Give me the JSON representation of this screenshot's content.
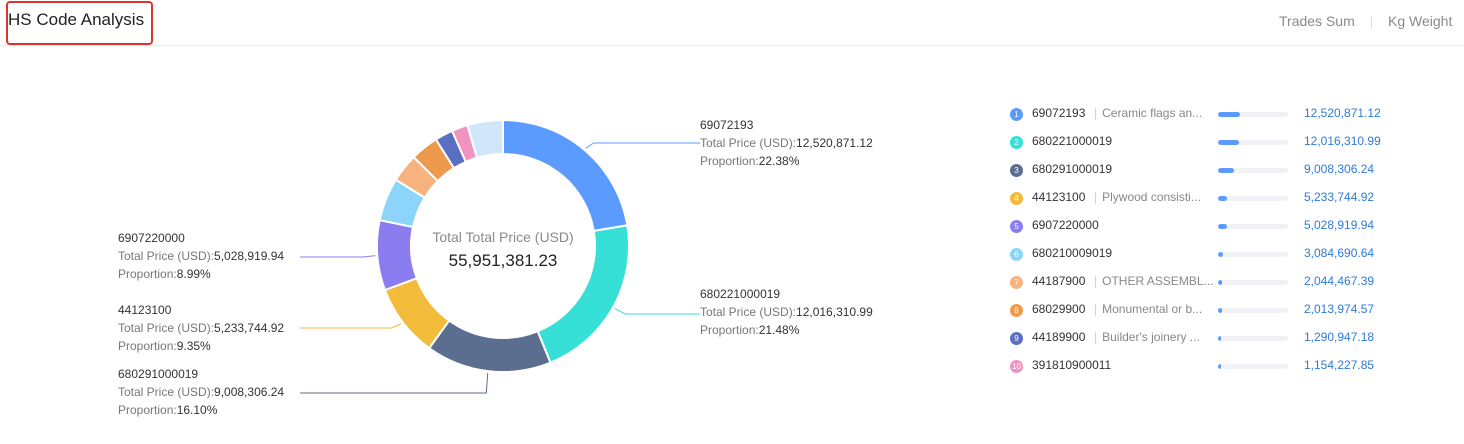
{
  "header": {
    "title": "HS Code Analysis",
    "toggles": [
      "Trades Sum",
      "Kg Weight"
    ]
  },
  "center": {
    "label": "Total Total Price (USD)",
    "value": "55,951,381.23"
  },
  "labels": {
    "price_prefix": "Total Price (USD):",
    "proportion_prefix": "Proportion:"
  },
  "chart_data": {
    "type": "pie",
    "donut": true,
    "total": 55951381.23,
    "slices": [
      {
        "code": "69072193",
        "desc": "Ceramic flags an...",
        "value": 12520871.12,
        "value_text": "12,520,871.12",
        "proportion": "22.38%",
        "color": "#5b9bff"
      },
      {
        "code": "680221000019",
        "desc": "",
        "value": 12016310.99,
        "value_text": "12,016,310.99",
        "proportion": "21.48%",
        "color": "#36e0d6"
      },
      {
        "code": "680291000019",
        "desc": "",
        "value": 9008306.24,
        "value_text": "9,008,306.24",
        "proportion": "16.10%",
        "color": "#5b6e90"
      },
      {
        "code": "44123100",
        "desc": "Plywood consisti...",
        "value": 5233744.92,
        "value_text": "5,233,744.92",
        "proportion": "9.35%",
        "color": "#f2bc3a"
      },
      {
        "code": "6907220000",
        "desc": "",
        "value": 5028919.94,
        "value_text": "5,028,919.94",
        "proportion": "8.99%",
        "color": "#8b7df0"
      },
      {
        "code": "680210009019",
        "desc": "",
        "value": 3084690.64,
        "value_text": "3,084,690.64",
        "color": "#8dd4fb"
      },
      {
        "code": "44187900",
        "desc": "OTHER ASSEMBL...",
        "value": 2044467.39,
        "value_text": "2,044,467.39",
        "color": "#f6b37f"
      },
      {
        "code": "68029900",
        "desc": "Monumental or b...",
        "value": 2013974.57,
        "value_text": "2,013,974.57",
        "color": "#ee9a4c"
      },
      {
        "code": "44189900",
        "desc": "Builder's joinery ...",
        "value": 1290947.18,
        "value_text": "1,290,947.18",
        "color": "#5a6fc2"
      },
      {
        "code": "391810900011",
        "desc": "",
        "value": 1154227.85,
        "value_text": "1,154,227.85",
        "color": "#f093c0"
      },
      {
        "code": "",
        "desc": "",
        "value": 2555000,
        "value_text": "",
        "color": "#d2e6fb"
      }
    ]
  }
}
